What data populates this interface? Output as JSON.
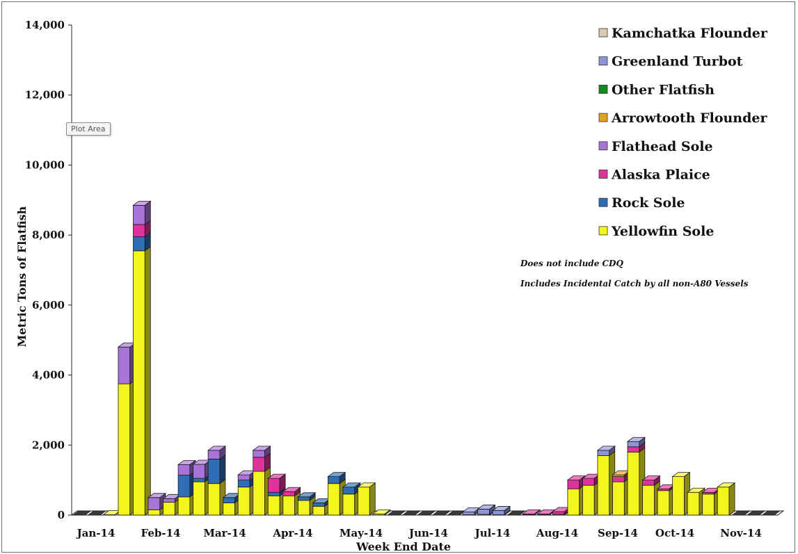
{
  "chart_data": {
    "type": "bar",
    "stacked": true,
    "three_d": true,
    "xlabel": "Week End Date",
    "ylabel": "Metric Tons of Flatfish",
    "ylim": [
      0,
      14000
    ],
    "yticks": [
      "0",
      "2,000",
      "4,000",
      "6,000",
      "8,000",
      "10,000",
      "12,000",
      "14,000"
    ],
    "x_tick_labels": [
      "Jan-14",
      "Feb-14",
      "Mar-14",
      "Apr-14",
      "May-14",
      "Jun-14",
      "Jul-14",
      "Aug-14",
      "Sep-14",
      "Oct-14",
      "Nov-14"
    ],
    "grid": false,
    "legend_position": "top-right",
    "notes": [
      "Does not include CDQ",
      "Includes Incidental Catch by all non-A80 Vessels"
    ],
    "tooltip": "Plot Area",
    "weeks": 47,
    "series": [
      {
        "name": "Yellowfin Sole",
        "color": "#f5f51e",
        "values": [
          0,
          0,
          10,
          3750,
          7550,
          150,
          370,
          520,
          950,
          900,
          350,
          800,
          1250,
          550,
          550,
          420,
          250,
          900,
          600,
          800,
          30,
          0,
          0,
          0,
          0,
          0,
          10,
          20,
          10,
          0,
          10,
          10,
          20,
          750,
          850,
          1700,
          950,
          1800,
          850,
          700,
          1100,
          650,
          600,
          800,
          0,
          0,
          0
        ]
      },
      {
        "name": "Rock Sole",
        "color": "#2f6db5",
        "values": [
          0,
          0,
          0,
          0,
          400,
          0,
          0,
          620,
          100,
          700,
          150,
          200,
          0,
          100,
          0,
          100,
          100,
          200,
          200,
          0,
          0,
          0,
          0,
          0,
          0,
          0,
          0,
          0,
          0,
          0,
          0,
          0,
          0,
          0,
          0,
          0,
          0,
          0,
          0,
          0,
          0,
          0,
          0,
          0,
          0,
          0,
          0
        ]
      },
      {
        "name": "Alaska Plaice",
        "color": "#e0329c",
        "values": [
          0,
          0,
          0,
          0,
          350,
          0,
          0,
          0,
          0,
          0,
          0,
          0,
          400,
          400,
          120,
          0,
          0,
          0,
          0,
          0,
          0,
          0,
          0,
          0,
          0,
          0,
          0,
          0,
          0,
          0,
          20,
          20,
          80,
          250,
          200,
          0,
          150,
          150,
          150,
          50,
          0,
          0,
          50,
          0,
          0,
          0,
          0
        ]
      },
      {
        "name": "Flathead Sole",
        "color": "#a974d8",
        "values": [
          0,
          0,
          0,
          1050,
          550,
          350,
          100,
          300,
          400,
          250,
          0,
          150,
          200,
          0,
          0,
          0,
          0,
          0,
          0,
          0,
          0,
          0,
          0,
          0,
          0,
          0,
          0,
          0,
          0,
          0,
          0,
          0,
          0,
          0,
          0,
          0,
          0,
          0,
          0,
          0,
          0,
          0,
          0,
          0,
          0,
          0,
          0
        ]
      },
      {
        "name": "Arrowtooth Flounder",
        "color": "#e3a021",
        "values": [
          0,
          0,
          0,
          0,
          0,
          0,
          0,
          0,
          0,
          0,
          0,
          0,
          0,
          0,
          0,
          0,
          0,
          0,
          0,
          0,
          0,
          0,
          0,
          0,
          0,
          0,
          0,
          0,
          0,
          0,
          0,
          0,
          0,
          0,
          0,
          0,
          50,
          0,
          0,
          0,
          0,
          0,
          0,
          0,
          0,
          0,
          0
        ]
      },
      {
        "name": "Other Flatfish",
        "color": "#118a1e",
        "values": [
          0,
          0,
          0,
          0,
          0,
          0,
          0,
          0,
          0,
          0,
          0,
          0,
          0,
          0,
          0,
          0,
          0,
          0,
          0,
          0,
          0,
          0,
          0,
          0,
          0,
          0,
          0,
          0,
          0,
          0,
          0,
          0,
          0,
          0,
          0,
          0,
          0,
          0,
          0,
          0,
          0,
          0,
          0,
          0,
          0,
          0,
          0
        ]
      },
      {
        "name": "Greenland Turbot",
        "color": "#8d95d8",
        "values": [
          0,
          0,
          0,
          0,
          0,
          0,
          0,
          0,
          0,
          0,
          0,
          0,
          0,
          0,
          0,
          0,
          0,
          0,
          0,
          0,
          0,
          0,
          0,
          0,
          0,
          0,
          80,
          150,
          120,
          0,
          0,
          0,
          0,
          0,
          0,
          150,
          0,
          150,
          0,
          0,
          0,
          0,
          0,
          0,
          0,
          0,
          0
        ]
      },
      {
        "name": "Kamchatka Flounder",
        "color": "#d8cdb0",
        "values": [
          0,
          0,
          0,
          0,
          0,
          0,
          0,
          0,
          0,
          0,
          0,
          0,
          0,
          0,
          0,
          0,
          0,
          0,
          0,
          0,
          0,
          0,
          0,
          0,
          0,
          0,
          0,
          0,
          0,
          0,
          0,
          0,
          0,
          0,
          0,
          0,
          0,
          0,
          0,
          0,
          0,
          0,
          0,
          0,
          0,
          0,
          0
        ]
      }
    ]
  }
}
